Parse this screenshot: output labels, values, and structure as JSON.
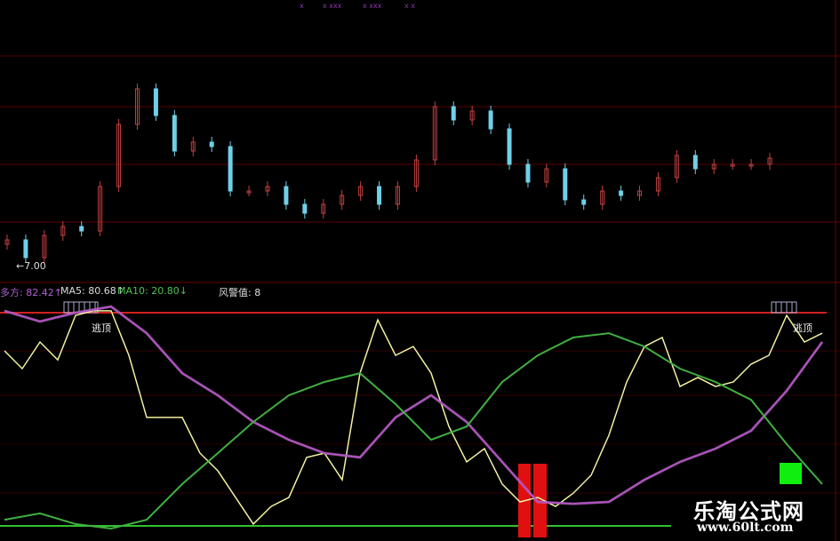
{
  "top_markers": [
    "x",
    "x xxx",
    "x xxx",
    "x x"
  ],
  "price_label": "←7.00",
  "indicator_header": {
    "duofang": "多方: 82.42↑",
    "ma5": "MA5: 80.68↑",
    "ma10": "MA10: 20.80↓",
    "fengjing": "风警值: 8"
  },
  "signal_labels": [
    "逃顶",
    "逃顶"
  ],
  "watermark": {
    "name": "乐淘公式网",
    "url": "www.60lt.com"
  },
  "colors": {
    "up": "#c04040",
    "down": "#6fd0e8",
    "yellow": "#f2f0a0",
    "purple": "#b050c0",
    "green": "#40b040",
    "redline": "#d02020",
    "grid": "#5a0000"
  },
  "chart_data": [
    {
      "type": "candlestick",
      "title": "",
      "ylim": [
        6.6,
        11.6
      ],
      "yticks": [
        "7.00"
      ],
      "closes": [
        7.56,
        7.16,
        7.66,
        7.86,
        7.76,
        8.76,
        10.16,
        10.96,
        10.36,
        9.56,
        9.76,
        9.66,
        8.66,
        8.66,
        8.76,
        8.36,
        8.16,
        8.36,
        8.56,
        8.76,
        8.36,
        8.76,
        9.36,
        10.56,
        10.26,
        10.46,
        10.06,
        9.26,
        8.86,
        9.16,
        8.46,
        8.36,
        8.66,
        8.56,
        8.66,
        8.96,
        9.46,
        9.16,
        9.26,
        9.26,
        9.26,
        9.4
      ]
    },
    {
      "type": "line",
      "title": "",
      "ylim": [
        0,
        100
      ],
      "reference_line": 80,
      "series": [
        {
          "color": "yellow",
          "values": [
            65.7,
            59,
            69,
            62.3,
            79,
            80.7,
            80.7,
            64,
            40.7,
            40.7,
            40.7,
            27.3,
            20.7,
            10.7,
            0.7,
            7.3,
            10.7,
            25.7,
            27.3,
            17.3,
            57.3,
            77.3,
            64,
            67.3,
            57.3,
            37.3,
            24,
            29,
            15.7,
            9,
            10.7,
            7.3,
            12.3,
            19,
            34,
            54,
            67.3,
            70.7,
            52.3,
            55.7,
            52.3,
            54,
            60.7,
            64,
            79,
            69,
            72.3
          ]
        },
        {
          "color": "purple",
          "values": [
            80.7,
            76.7,
            80,
            82.3,
            72.3,
            57.3,
            49,
            39,
            32.3,
            27.3,
            25.7,
            40.7,
            49,
            39,
            24,
            9,
            8.3,
            9,
            17.3,
            24,
            29,
            35.7,
            50.7,
            69
          ]
        },
        {
          "color": "green",
          "values": [
            2.3,
            4.7,
            0.7,
            -1,
            2.3,
            15.7,
            27.3,
            39,
            49,
            54,
            57.3,
            45.7,
            32.3,
            37.3,
            54,
            64,
            70.7,
            72.3,
            67.3,
            59,
            54,
            47.3,
            30.7,
            15.7
          ]
        }
      ],
      "signal_bar": "red",
      "signal_box": "green"
    }
  ]
}
